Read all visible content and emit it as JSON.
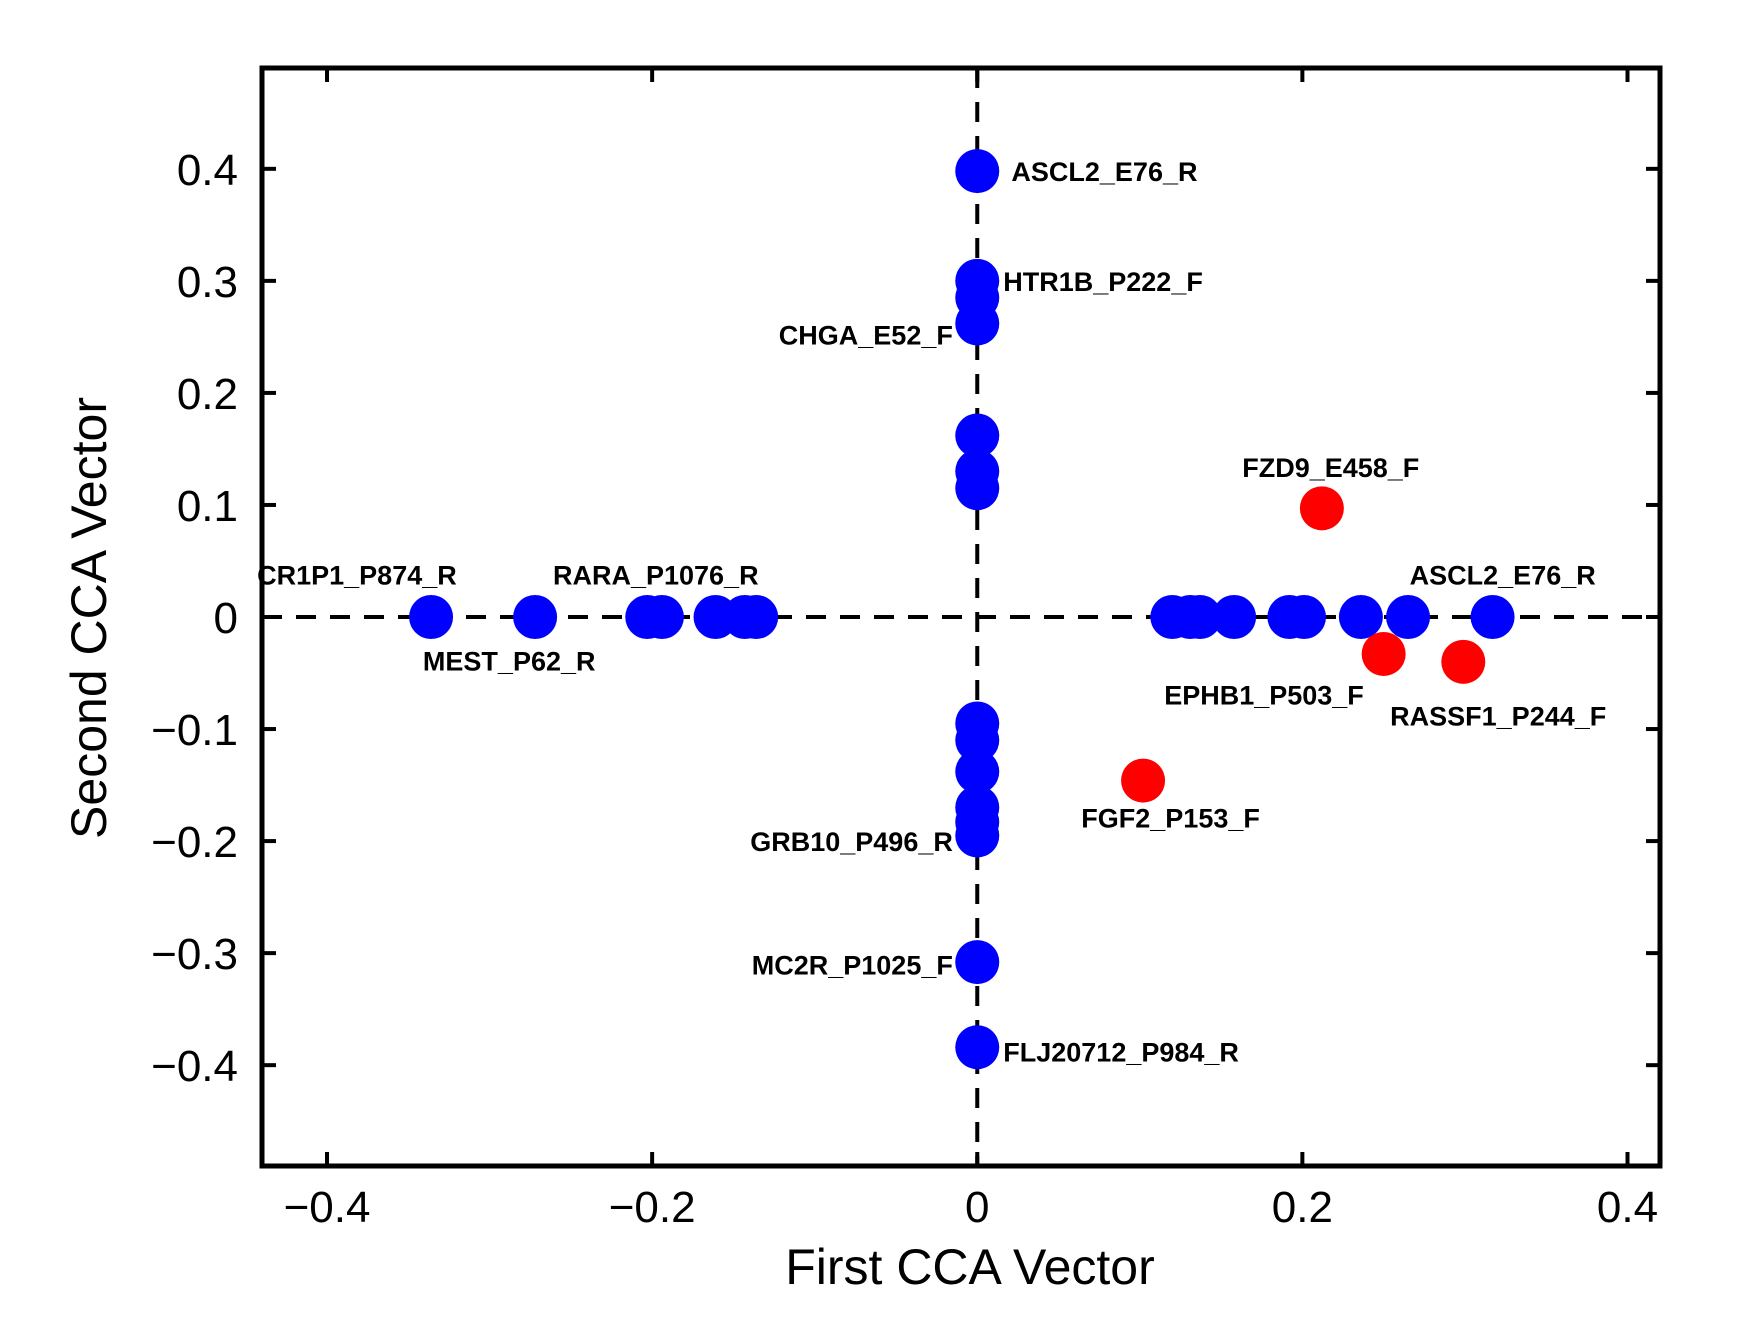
{
  "chart_data": {
    "type": "scatter",
    "title": "",
    "xlabel": "First CCA Vector",
    "ylabel": "Second CCA Vector",
    "xlim": [
      -0.44,
      0.42
    ],
    "ylim": [
      -0.49,
      0.49
    ],
    "grid": false,
    "reference_lines": [
      {
        "axis": "x",
        "value": 0,
        "style": "dashed"
      },
      {
        "axis": "y",
        "value": 0,
        "style": "dashed"
      }
    ],
    "x_ticks": [
      -0.4,
      -0.2,
      0,
      0.2,
      0.4
    ],
    "x_tick_labels": [
      "−0.4",
      "−0.2",
      "0",
      "0.2",
      "0.4"
    ],
    "y_ticks": [
      0.4,
      0.3,
      0.2,
      0.1,
      0,
      -0.1,
      -0.2,
      -0.3,
      -0.4
    ],
    "y_tick_labels": [
      "0.4",
      "0.3",
      "0.2",
      "0.1",
      "0",
      "−0.1",
      "−0.2",
      "−0.3",
      "−0.4"
    ],
    "series": [
      {
        "name": "blue",
        "color": "#0000ff",
        "points": [
          {
            "x": 0,
            "y": 0.398
          },
          {
            "x": 0,
            "y": 0.3
          },
          {
            "x": 0,
            "y": 0.285
          },
          {
            "x": 0,
            "y": 0.262
          },
          {
            "x": 0,
            "y": 0.162
          },
          {
            "x": 0,
            "y": 0.13
          },
          {
            "x": 0,
            "y": 0.115
          },
          {
            "x": 0,
            "y": -0.095
          },
          {
            "x": 0,
            "y": -0.11
          },
          {
            "x": 0,
            "y": -0.138
          },
          {
            "x": 0,
            "y": -0.17
          },
          {
            "x": 0,
            "y": -0.183
          },
          {
            "x": 0,
            "y": -0.195
          },
          {
            "x": 0,
            "y": -0.308
          },
          {
            "x": 0,
            "y": -0.384
          },
          {
            "x": -0.336,
            "y": 0
          },
          {
            "x": -0.272,
            "y": 0
          },
          {
            "x": -0.203,
            "y": 0
          },
          {
            "x": -0.194,
            "y": 0
          },
          {
            "x": -0.161,
            "y": 0
          },
          {
            "x": -0.143,
            "y": 0
          },
          {
            "x": -0.136,
            "y": 0
          },
          {
            "x": 0.12,
            "y": 0
          },
          {
            "x": 0.131,
            "y": 0
          },
          {
            "x": 0.137,
            "y": 0
          },
          {
            "x": 0.158,
            "y": 0
          },
          {
            "x": 0.192,
            "y": 0
          },
          {
            "x": 0.201,
            "y": 0
          },
          {
            "x": 0.236,
            "y": 0
          },
          {
            "x": 0.265,
            "y": 0
          },
          {
            "x": 0.317,
            "y": 0
          }
        ]
      },
      {
        "name": "red",
        "color": "#ff0000",
        "points": [
          {
            "x": 0.212,
            "y": 0.097
          },
          {
            "x": 0.25,
            "y": -0.033
          },
          {
            "x": 0.299,
            "y": -0.04
          },
          {
            "x": 0.102,
            "y": -0.146
          }
        ]
      }
    ],
    "annotations": [
      {
        "text": "ASCL2_E76_R",
        "x": 0.021,
        "y": 0.398,
        "anchor": "start"
      },
      {
        "text": "HTR1B_P222_F",
        "x": 0.016,
        "y": 0.3,
        "anchor": "start"
      },
      {
        "text": "CHGA_E52_F",
        "x": -0.015,
        "y": 0.252,
        "anchor": "end"
      },
      {
        "text": "FZD9_E458_F",
        "x": 0.163,
        "y": 0.134,
        "anchor": "start"
      },
      {
        "text": "CR1P1_P874_R",
        "x": -0.443,
        "y": 0.038,
        "anchor": "start"
      },
      {
        "text": "RARA_P1076_R",
        "x": -0.261,
        "y": 0.038,
        "anchor": "start"
      },
      {
        "text": "ASCL2_E76_R",
        "x": 0.266,
        "y": 0.038,
        "anchor": "start"
      },
      {
        "text": "MEST_P62_R",
        "x": -0.341,
        "y": -0.039,
        "anchor": "start"
      },
      {
        "text": "EPHB1_P503_F",
        "x": 0.115,
        "y": -0.069,
        "anchor": "start"
      },
      {
        "text": "RASSF1_P244_F",
        "x": 0.254,
        "y": -0.088,
        "anchor": "start"
      },
      {
        "text": "FGF2_P153_F",
        "x": 0.064,
        "y": -0.179,
        "anchor": "start"
      },
      {
        "text": "GRB10_P496_R",
        "x": -0.015,
        "y": -0.2,
        "anchor": "end"
      },
      {
        "text": "MC2R_P1025_F",
        "x": -0.015,
        "y": -0.31,
        "anchor": "end"
      },
      {
        "text": "FLJ20712_P984_R",
        "x": 0.016,
        "y": -0.388,
        "anchor": "start"
      }
    ]
  }
}
